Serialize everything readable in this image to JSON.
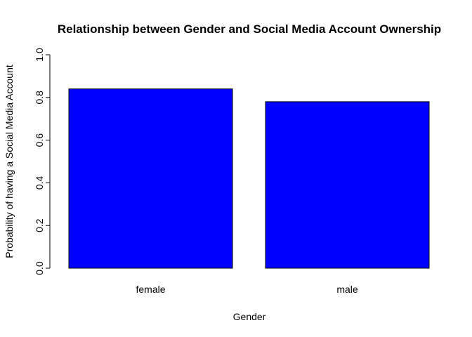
{
  "chart_data": {
    "type": "bar",
    "title": "Relationship between Gender and Social Media Account Ownership",
    "xlabel": "Gender",
    "ylabel": "Probability of having a Social Media Account",
    "categories": [
      "female",
      "male"
    ],
    "values": [
      0.84,
      0.78
    ],
    "ylim": [
      0,
      1
    ],
    "yticks": [
      0.0,
      0.2,
      0.4,
      0.6,
      0.8,
      1.0
    ],
    "ytick_labels": [
      "0.0",
      "0.2",
      "0.4",
      "0.6",
      "0.8",
      "1.0"
    ],
    "bar_color": "#0000ff",
    "bar_border_color": "#000000",
    "grid": false,
    "legend": false
  }
}
